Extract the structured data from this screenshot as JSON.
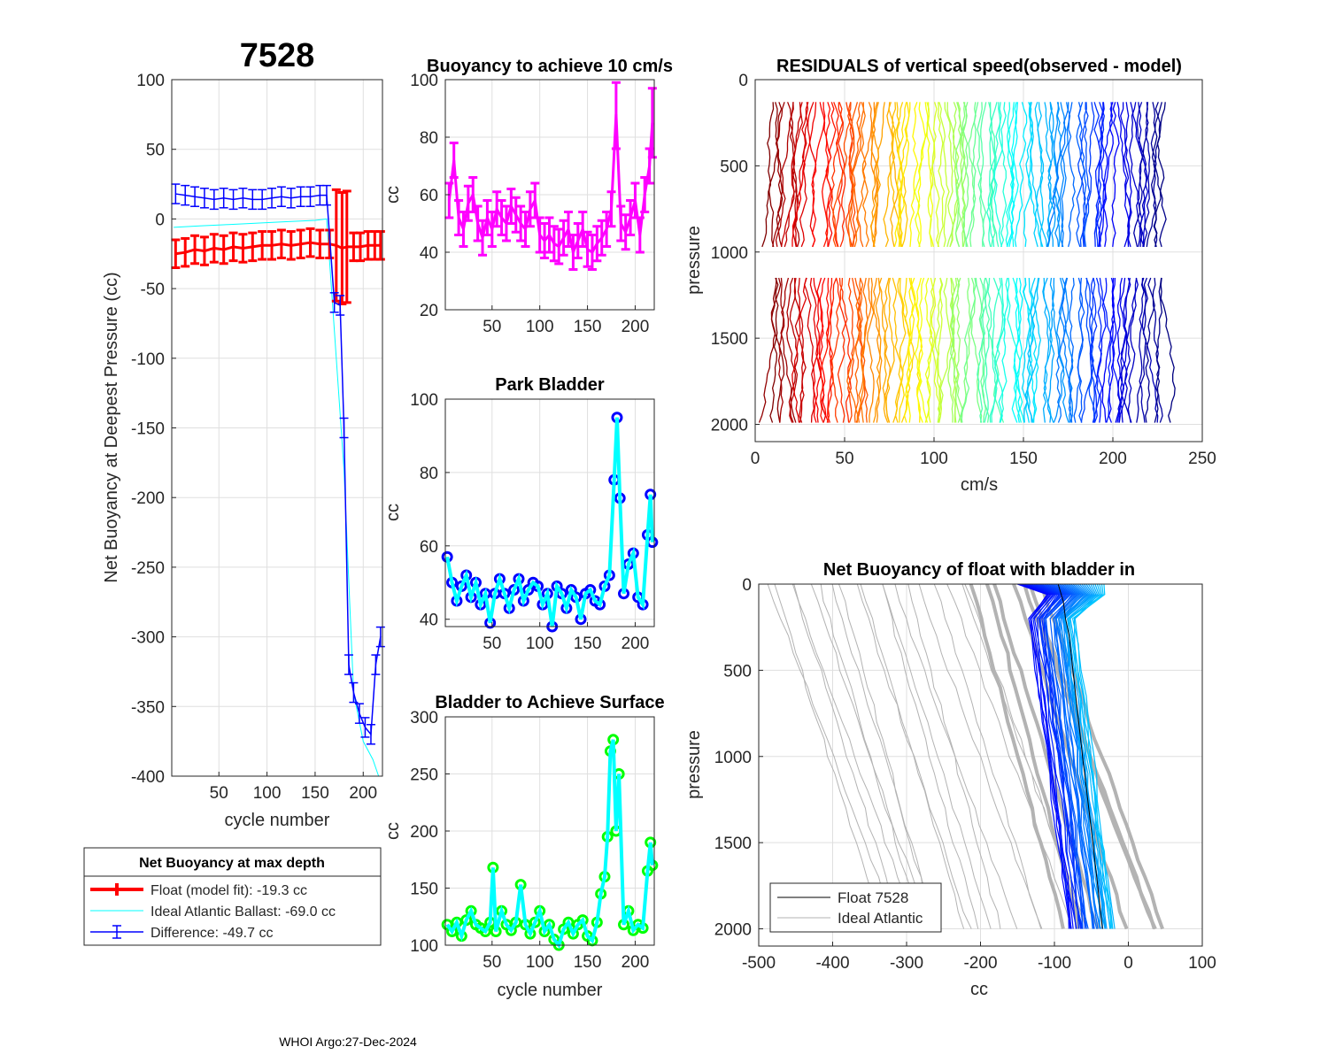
{
  "page": {
    "float_id": "7528",
    "footer": "WHOI Argo:27-Dec-2024"
  },
  "colors": {
    "float": "#ff0000",
    "ideal": "#00ffff",
    "difference": "#0000ff",
    "magenta": "#ff00ff",
    "park_edge": "#0000ff",
    "park_line": "#00ffff",
    "surface_edge": "#00ff00",
    "surface_line": "#00ffff",
    "gray": "#b3b3b3"
  },
  "legend1": {
    "title": "Net Buoyancy at max depth",
    "entries": [
      "Float (model fit): -19.3 cc",
      "Ideal Atlantic Ballast: -69.0 cc",
      "Difference: -49.7 cc"
    ]
  },
  "legend2": {
    "entries": [
      "Float 7528",
      "Ideal Atlantic"
    ]
  },
  "chart_data": [
    {
      "id": "net_buoyancy",
      "type": "line",
      "title": "7528",
      "xlabel": "cycle number",
      "ylabel": "Net Buoyancy at Deepest Pressure (cc)",
      "xlim": [
        1,
        220
      ],
      "ylim": [
        -400,
        100
      ],
      "xticks": [
        50,
        100,
        150,
        200
      ],
      "yticks": [
        100,
        50,
        0,
        -50,
        -100,
        -150,
        -200,
        -250,
        -300,
        -350,
        -400
      ],
      "series": [
        {
          "name": "Float (model fit)",
          "x": [
            5,
            15,
            25,
            35,
            45,
            55,
            65,
            75,
            85,
            95,
            105,
            115,
            125,
            135,
            145,
            155,
            165,
            172,
            178,
            183,
            190,
            197,
            205,
            212,
            218
          ],
          "values": [
            -25,
            -24,
            -22,
            -23,
            -21,
            -22,
            -20,
            -21,
            -20,
            -19,
            -19,
            -18,
            -19,
            -18,
            -17,
            -18,
            -18,
            -19,
            -21,
            -20,
            -20,
            -20,
            -19,
            -19,
            -19
          ]
        },
        {
          "name": "Ideal Atlantic Ballast",
          "x": [
            3,
            30,
            60,
            90,
            120,
            150,
            162,
            170,
            180,
            190,
            200,
            210,
            216
          ],
          "values": [
            -6,
            -5,
            -4,
            -3,
            -2,
            -1,
            0,
            -80,
            -180,
            -340,
            -375,
            -388,
            -400
          ]
        },
        {
          "name": "Difference",
          "x": [
            5,
            15,
            25,
            35,
            45,
            55,
            65,
            75,
            85,
            95,
            105,
            115,
            125,
            135,
            145,
            155,
            162,
            170,
            176,
            180,
            185,
            190,
            196,
            202,
            208,
            213,
            218
          ],
          "values": [
            18,
            17,
            16,
            15,
            14,
            15,
            14,
            15,
            14,
            14,
            15,
            16,
            15,
            16,
            16,
            17,
            17,
            -60,
            -62,
            -150,
            -320,
            -340,
            -355,
            -365,
            -370,
            -320,
            -300
          ]
        }
      ]
    },
    {
      "id": "buoyancy_10cms",
      "type": "line",
      "title": "Buoyancy to achieve 10 cm/s",
      "ylabel": "cc",
      "xlim": [
        1,
        220
      ],
      "ylim": [
        20,
        100
      ],
      "xticks": [
        50,
        100,
        150,
        200
      ],
      "yticks": [
        20,
        40,
        60,
        80,
        100
      ],
      "series": [
        {
          "name": "buoyancy",
          "x": [
            5,
            10,
            15,
            20,
            25,
            30,
            35,
            40,
            45,
            50,
            55,
            60,
            65,
            70,
            75,
            80,
            85,
            90,
            95,
            100,
            105,
            110,
            115,
            120,
            125,
            130,
            135,
            140,
            145,
            150,
            155,
            160,
            165,
            170,
            175,
            180,
            185,
            190,
            195,
            200,
            205,
            210,
            215,
            218
          ],
          "values": [
            58,
            72,
            52,
            48,
            57,
            60,
            50,
            45,
            52,
            48,
            55,
            52,
            50,
            56,
            53,
            50,
            48,
            55,
            58,
            46,
            44,
            46,
            43,
            42,
            45,
            48,
            40,
            44,
            48,
            41,
            40,
            43,
            45,
            48,
            55,
            88,
            50,
            47,
            52,
            58,
            46,
            60,
            70,
            85
          ]
        }
      ]
    },
    {
      "id": "park_bladder",
      "type": "line",
      "title": "Park Bladder",
      "ylabel": "cc",
      "xlim": [
        1,
        220
      ],
      "ylim": [
        38,
        100
      ],
      "xticks": [
        50,
        100,
        150,
        200
      ],
      "yticks": [
        40,
        60,
        80,
        100
      ],
      "series": [
        {
          "name": "park",
          "x": [
            3,
            8,
            13,
            18,
            23,
            28,
            33,
            38,
            43,
            48,
            53,
            58,
            63,
            68,
            73,
            78,
            83,
            88,
            93,
            98,
            103,
            108,
            113,
            118,
            123,
            128,
            133,
            138,
            143,
            148,
            153,
            158,
            163,
            168,
            173,
            178,
            181,
            184,
            188,
            193,
            198,
            203,
            208,
            213,
            216,
            218
          ],
          "values": [
            57,
            50,
            45,
            49,
            52,
            46,
            50,
            44,
            47,
            39,
            47,
            51,
            47,
            43,
            48,
            51,
            45,
            48,
            50,
            49,
            44,
            47,
            38,
            49,
            47,
            43,
            48,
            46,
            40,
            47,
            48,
            45,
            44,
            49,
            52,
            78,
            95,
            73,
            47,
            55,
            58,
            46,
            44,
            63,
            74,
            61
          ]
        }
      ]
    },
    {
      "id": "bladder_surface",
      "type": "line",
      "title": "Bladder to Achieve Surface",
      "xlabel": "cycle number",
      "ylabel": "cc",
      "xlim": [
        1,
        220
      ],
      "ylim": [
        100,
        300
      ],
      "xticks": [
        50,
        100,
        150,
        200
      ],
      "yticks": [
        100,
        150,
        200,
        250,
        300
      ],
      "series": [
        {
          "name": "surface",
          "x": [
            3,
            8,
            13,
            18,
            23,
            28,
            33,
            38,
            43,
            48,
            51,
            54,
            60,
            65,
            70,
            75,
            80,
            85,
            90,
            95,
            100,
            105,
            110,
            115,
            120,
            125,
            130,
            135,
            140,
            145,
            150,
            155,
            160,
            164,
            168,
            171,
            174,
            177,
            180,
            183,
            188,
            193,
            198,
            203,
            208,
            213,
            216,
            218
          ],
          "values": [
            118,
            112,
            120,
            108,
            122,
            130,
            118,
            115,
            112,
            120,
            168,
            112,
            130,
            118,
            113,
            120,
            153,
            118,
            110,
            120,
            130,
            112,
            118,
            105,
            100,
            114,
            120,
            110,
            118,
            122,
            108,
            104,
            120,
            145,
            160,
            195,
            270,
            280,
            200,
            250,
            118,
            130,
            113,
            118,
            115,
            165,
            190,
            170
          ]
        }
      ]
    },
    {
      "id": "residuals",
      "type": "line",
      "title": "RESIDUALS of vertical speed(observed - model)",
      "xlabel": "cm/s",
      "ylabel": "pressure",
      "xlim": [
        0,
        250
      ],
      "ylim": [
        0,
        2100
      ],
      "xticks": [
        0,
        50,
        100,
        150,
        200,
        250
      ],
      "yticks": [
        0,
        500,
        1000,
        1500,
        2000
      ]
    },
    {
      "id": "net_buoyancy_bladder_in",
      "type": "line",
      "title": "Net Buoyancy of float with bladder in",
      "xlabel": "cc",
      "ylabel": "pressure",
      "xlim": [
        -500,
        100
      ],
      "ylim": [
        0,
        2100
      ],
      "xticks": [
        -500,
        -400,
        -300,
        -200,
        -100,
        0,
        100
      ],
      "yticks": [
        0,
        500,
        1000,
        1500,
        2000
      ],
      "series": [
        {
          "name": "Float 7528",
          "pressure": [
            0,
            100,
            200,
            300,
            500,
            1000,
            1500,
            2000
          ],
          "values": [
            -95,
            -88,
            -85,
            -80,
            -75,
            -62,
            -48,
            -35
          ]
        },
        {
          "name": "Ideal Atlantic",
          "pressure": [
            0,
            200,
            500,
            1000,
            1500,
            2000
          ],
          "values": [
            -480,
            -460,
            -445,
            -420,
            -395,
            -370
          ]
        }
      ]
    }
  ]
}
